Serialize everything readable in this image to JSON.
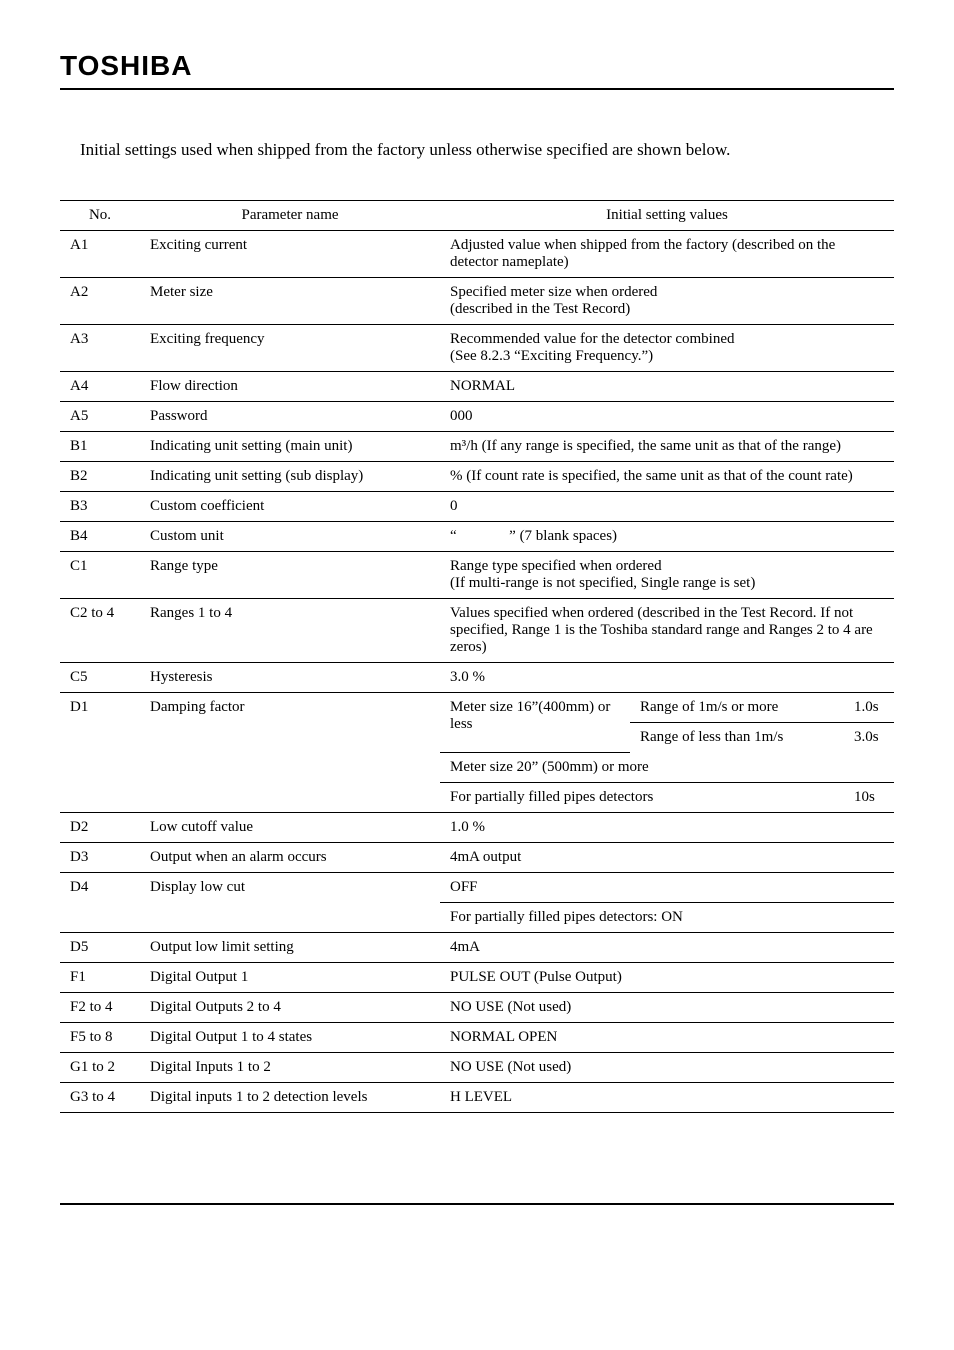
{
  "logo": "TOSHIBA",
  "intro": "Initial settings used when shipped from the factory unless otherwise specified are shown below.",
  "table": {
    "header": {
      "no": "No.",
      "param": "Parameter name",
      "value": "Initial setting values"
    },
    "rows": [
      {
        "no": "A1",
        "param": "Exciting current",
        "value": "Adjusted value when shipped from the factory (described on the detector nameplate)"
      },
      {
        "no": "A2",
        "param": "Meter size",
        "value": "Specified meter size when ordered\n(described in the Test Record)"
      },
      {
        "no": "A3",
        "param": "Exciting frequency",
        "value": "Recommended value for the detector combined\n(See 8.2.3 “Exciting Frequency.”)"
      },
      {
        "no": "A4",
        "param": "Flow direction",
        "value": "NORMAL"
      },
      {
        "no": "A5",
        "param": "Password",
        "value": "000"
      },
      {
        "no": "B1",
        "param": "Indicating unit setting (main unit)",
        "value": "m³/h (If any range is specified, the same unit as that of the range)"
      },
      {
        "no": "B2",
        "param": "Indicating unit setting (sub display)",
        "value": "% (If count rate is specified, the same unit as that of the count rate)"
      },
      {
        "no": "B3",
        "param": "Custom coefficient",
        "value": "0"
      },
      {
        "no": "B4",
        "param": "Custom unit",
        "value": "“              ” (7 blank spaces)"
      },
      {
        "no": "C1",
        "param": "Range type",
        "value": "Range type specified when ordered\n(If multi-range is not specified, Single range is set)"
      },
      {
        "no": "C2 to 4",
        "param": "Ranges 1 to 4",
        "value": "Values specified when ordered (described in the Test Record. If not specified, Range 1 is the Toshiba standard range and Ranges 2 to 4 are zeros)"
      },
      {
        "no": "C5",
        "param": "Hysteresis",
        "value": "3.0 %"
      }
    ],
    "d1": {
      "no": "D1",
      "param": "Damping factor",
      "sub1_a": "Meter size 16”(400mm) or less",
      "cond_a": "Range of 1m/s or more",
      "dur_a": "1.0s",
      "cond_b": "Range of less than 1m/s",
      "dur_bc": "3.0s",
      "sub1_c": "Meter size 20” (500mm) or more",
      "sub1_d": "For partially filled pipes detectors",
      "dur_d": "10s"
    },
    "rows2": [
      {
        "no": "D2",
        "param": "Low cutoff value",
        "value": "1.0 %"
      },
      {
        "no": "D3",
        "param": "Output when an alarm occurs",
        "value": "4mA output"
      }
    ],
    "d4": {
      "no": "D4",
      "param": "Display low cut",
      "line1": "OFF",
      "line2": "For partially filled pipes detectors: ON"
    },
    "rows3": [
      {
        "no": "D5",
        "param": "Output low limit setting",
        "value": "4mA"
      },
      {
        "no": "F1",
        "param": "Digital Output 1",
        "value": "PULSE OUT (Pulse Output)"
      },
      {
        "no": "F2 to 4",
        "param": "Digital Outputs 2 to 4",
        "value": "NO USE (Not used)"
      },
      {
        "no": "F5 to 8",
        "param": "Digital Output 1 to 4 states",
        "value": "NORMAL OPEN"
      },
      {
        "no": "G1 to 2",
        "param": "Digital Inputs 1 to 2",
        "value": "NO USE (Not used)"
      },
      {
        "no": "G3 to 4",
        "param": "Digital inputs 1 to 2 detection levels",
        "value": "H LEVEL"
      }
    ]
  }
}
